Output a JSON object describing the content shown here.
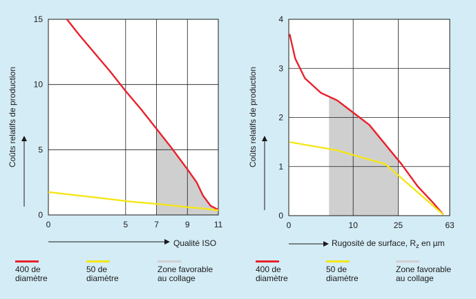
{
  "colors": {
    "background": "#d4ecf6",
    "plot": "#ffffff",
    "grid": "#1a1a1a",
    "series_400": "#e8202a",
    "series_50": "#f5e616",
    "zone": "#cfcfcf"
  },
  "chart_data": [
    {
      "type": "line",
      "xlabel": "Qualité ISO",
      "ylabel": "Coûts relatifs de production",
      "x_ticks": [
        "0",
        "5",
        "7",
        "9",
        "11"
      ],
      "y_ticks": [
        "0",
        "5",
        "10",
        "15"
      ],
      "ylim": [
        0,
        15
      ],
      "grid": true,
      "series": [
        {
          "name": "400 de diamètre",
          "color": "#e8202a",
          "points": [
            [
              1.2,
              15
            ],
            [
              2,
              13.8
            ],
            [
              3,
              12.4
            ],
            [
              4,
              11
            ],
            [
              5,
              9.5
            ],
            [
              6,
              8.1
            ],
            [
              7,
              6.6
            ],
            [
              8,
              5.1
            ],
            [
              9,
              3.5
            ],
            [
              9.6,
              2.5
            ],
            [
              10,
              1.5
            ],
            [
              10.5,
              0.7
            ],
            [
              11,
              0.4
            ],
            [
              11.6,
              0.4
            ]
          ]
        },
        {
          "name": "50 de diamètre",
          "color": "#f5e616",
          "points": [
            [
              0,
              1.75
            ],
            [
              3,
              1.35
            ],
            [
              5.5,
              1.0
            ],
            [
              7,
              0.85
            ],
            [
              9,
              0.6
            ],
            [
              10,
              0.5
            ],
            [
              11.6,
              0.35
            ]
          ]
        }
      ],
      "zone": {
        "name": "Zone favorable au collage",
        "x_range": [
          7,
          11.6
        ]
      }
    },
    {
      "type": "line",
      "xlabel": "Rugosité de surface, Rz en µm",
      "xlabel_parts": [
        "Rugosité de surface, R",
        "z",
        " en µm"
      ],
      "ylabel": "Coûts relatifs de production",
      "x_ticks": [
        "0",
        "10",
        "25",
        "63"
      ],
      "y_ticks": [
        "0",
        "1",
        "2",
        "3",
        "4"
      ],
      "ylim": [
        0,
        4
      ],
      "grid": true,
      "series": [
        {
          "name": "400 de diamètre",
          "color": "#e8202a",
          "points": [
            [
              0.05,
              3.7
            ],
            [
              0.4,
              3.2
            ],
            [
              1,
              2.8
            ],
            [
              2,
              2.5
            ],
            [
              3,
              2.35
            ],
            [
              4,
              2.1
            ],
            [
              5,
              1.85
            ],
            [
              6,
              1.45
            ],
            [
              7,
              1.05
            ],
            [
              8,
              0.6
            ],
            [
              9,
              0.25
            ],
            [
              9.6,
              0.02
            ]
          ]
        },
        {
          "name": "50 de diamètre",
          "color": "#f5e616",
          "points": [
            [
              0.05,
              1.5
            ],
            [
              3,
              1.33
            ],
            [
              6,
              1.05
            ],
            [
              9.6,
              0.02
            ]
          ]
        }
      ],
      "zone": {
        "name": "Zone favorable au collage",
        "x_range": [
          2.5,
          6.8
        ]
      }
    }
  ],
  "legend": [
    {
      "items": [
        {
          "key": "series_400",
          "lines": [
            "400 de",
            "diamètre"
          ]
        },
        {
          "key": "series_50",
          "lines": [
            "50 de",
            "diamètre"
          ]
        },
        {
          "key": "zone",
          "lines": [
            "Zone favorable",
            "au collage"
          ]
        }
      ]
    },
    {
      "items": [
        {
          "key": "series_400",
          "lines": [
            "400 de",
            "diamètre"
          ]
        },
        {
          "key": "series_50",
          "lines": [
            "50 de",
            "diamètre"
          ]
        },
        {
          "key": "zone",
          "lines": [
            "Zone favorable",
            "au collage"
          ]
        }
      ]
    }
  ]
}
